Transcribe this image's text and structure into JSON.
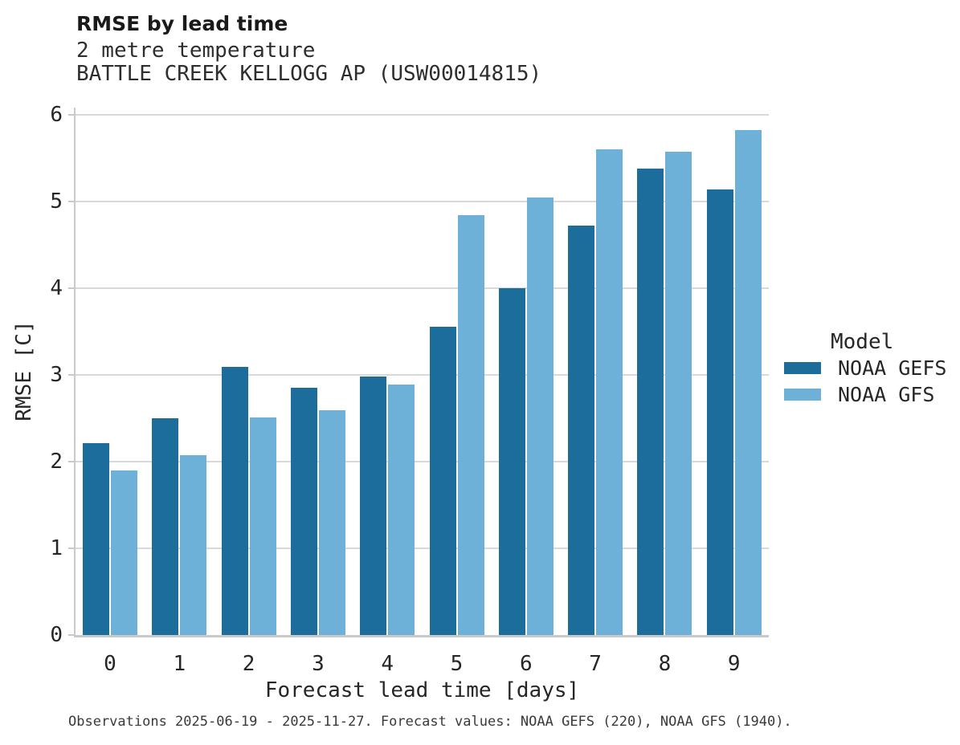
{
  "chart_data": {
    "type": "bar",
    "title": "RMSE by lead time",
    "subtitle_lines": [
      "2 metre temperature",
      "BATTLE CREEK KELLOGG AP (USW00014815)"
    ],
    "xlabel": "Forecast lead time [days]",
    "ylabel": "RMSE [C]",
    "categories": [
      "0",
      "1",
      "2",
      "3",
      "4",
      "5",
      "6",
      "7",
      "8",
      "9"
    ],
    "series": [
      {
        "name": "NOAA GEFS",
        "color": "#1c6d9c",
        "values": [
          2.21,
          2.5,
          3.09,
          2.85,
          2.98,
          3.56,
          4.0,
          4.72,
          5.38,
          5.14
        ]
      },
      {
        "name": "NOAA GFS",
        "color": "#6db0d8",
        "values": [
          1.9,
          2.07,
          2.51,
          2.59,
          2.89,
          4.84,
          5.05,
          5.6,
          5.57,
          5.82
        ]
      }
    ],
    "ylim": [
      0,
      6
    ],
    "yticks": [
      0,
      1,
      2,
      3,
      4,
      5,
      6
    ],
    "grid": "horizontal",
    "legend": {
      "title": "Model",
      "position": "right"
    },
    "caption": "Observations 2025-06-19 - 2025-11-27. Forecast values: NOAA GEFS (220), NOAA GFS (1940)."
  },
  "style_colors": {
    "gridline": "#d9d9d9",
    "spine": "#c9c9c9",
    "background": "#ffffff"
  }
}
